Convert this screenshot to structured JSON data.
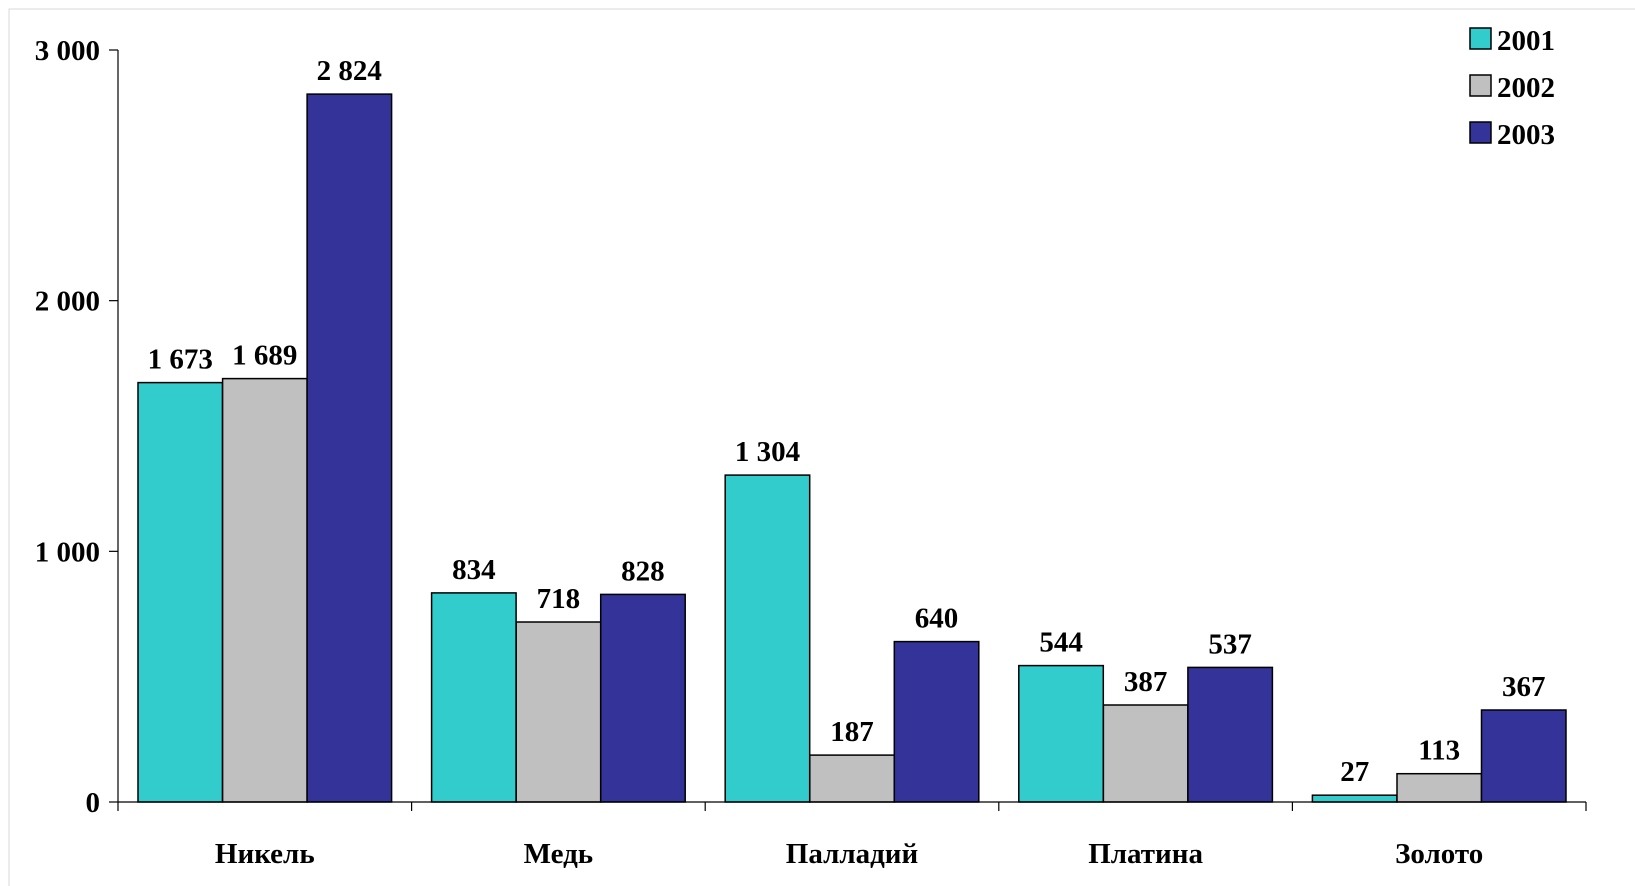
{
  "chart_data": {
    "type": "bar",
    "title": "",
    "xlabel": "",
    "ylabel": "",
    "ylim": [
      0,
      3000
    ],
    "yticks": [
      0,
      1000,
      2000,
      3000
    ],
    "ytick_labels": [
      "0",
      "1 000",
      "2 000",
      "3 000"
    ],
    "categories": [
      "Никель",
      "Медь",
      "Палладий",
      "Платина",
      "Золото"
    ],
    "series": [
      {
        "name": "2001",
        "color": "#33CCCC",
        "values": [
          1673,
          834,
          1304,
          544,
          27
        ],
        "labels": [
          "1 673",
          "834",
          "1 304",
          "544",
          "27"
        ]
      },
      {
        "name": "2002",
        "color": "#C0C0C0",
        "values": [
          1689,
          718,
          187,
          387,
          113
        ],
        "labels": [
          "1 689",
          "718",
          "187",
          "387",
          "113"
        ]
      },
      {
        "name": "2003",
        "color": "#333399",
        "values": [
          2824,
          828,
          640,
          537,
          367
        ],
        "labels": [
          "2 824",
          "828",
          "640",
          "537",
          "367"
        ]
      }
    ],
    "grid": false,
    "legend_position": "top-right"
  }
}
